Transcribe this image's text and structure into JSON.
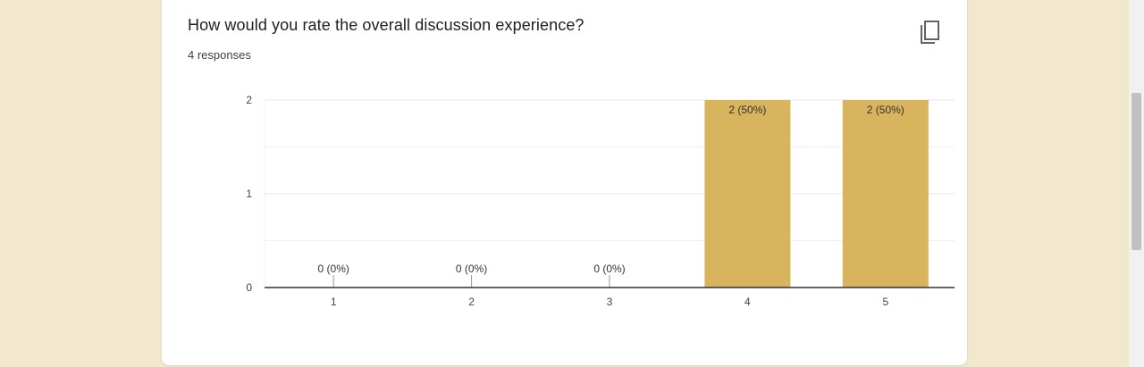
{
  "question": {
    "title": "How would you rate the overall discussion experience?",
    "responses": "4 responses"
  },
  "copy_button": {
    "icon": "copy-icon"
  },
  "colors": {
    "bar": "#d8b45e",
    "grid": "#e6e6e6",
    "axis": "#333333",
    "label": "#444444"
  },
  "chart_data": {
    "type": "bar",
    "categories": [
      "1",
      "2",
      "3",
      "4",
      "5"
    ],
    "values": [
      0,
      0,
      0,
      2,
      2
    ],
    "data_labels": [
      "0 (0%)",
      "0 (0%)",
      "0 (0%)",
      "2 (50%)",
      "2 (50%)"
    ],
    "y_ticks": [
      "0",
      "1",
      "2"
    ],
    "ylim": [
      0,
      2
    ],
    "grid": true,
    "legend": "none",
    "title": "",
    "xlabel": "",
    "ylabel": ""
  }
}
